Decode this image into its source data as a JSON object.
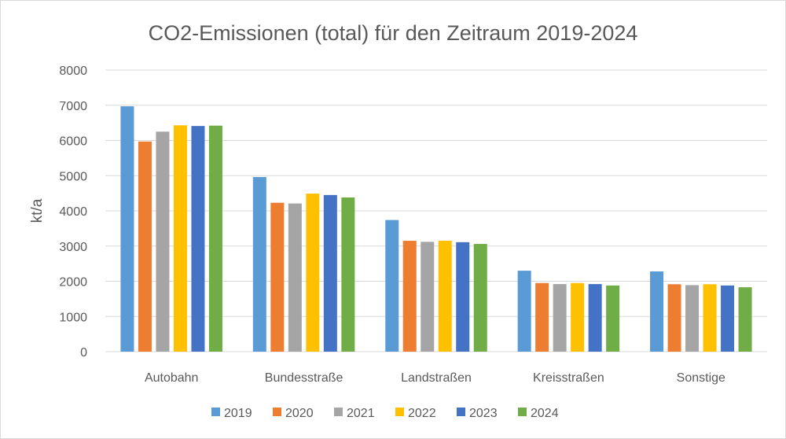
{
  "chart_data": {
    "type": "bar",
    "title": "CO2-Emissionen (total) für den Zeitraum 2019-2024",
    "xlabel": "",
    "ylabel": "kt/a",
    "ylim": [
      0,
      8000
    ],
    "yticks": [
      0,
      1000,
      2000,
      3000,
      4000,
      5000,
      6000,
      7000,
      8000
    ],
    "grid": true,
    "legend_position": "bottom",
    "categories": [
      "Autobahn",
      "Bundesstraße",
      "Landstraßen",
      "Kreisstraßen",
      "Sonstige"
    ],
    "series": [
      {
        "name": "2019",
        "color": "#5b9bd5",
        "values": [
          6970,
          4960,
          3740,
          2300,
          2280
        ]
      },
      {
        "name": "2020",
        "color": "#ed7d31",
        "values": [
          5970,
          4230,
          3150,
          1950,
          1915
        ]
      },
      {
        "name": "2021",
        "color": "#a5a5a5",
        "values": [
          6250,
          4210,
          3120,
          1920,
          1890
        ]
      },
      {
        "name": "2022",
        "color": "#ffc000",
        "values": [
          6430,
          4490,
          3150,
          1950,
          1915
        ]
      },
      {
        "name": "2023",
        "color": "#4472c4",
        "values": [
          6410,
          4450,
          3110,
          1920,
          1880
        ]
      },
      {
        "name": "2024",
        "color": "#70ad47",
        "values": [
          6420,
          4380,
          3060,
          1880,
          1830
        ]
      }
    ]
  }
}
